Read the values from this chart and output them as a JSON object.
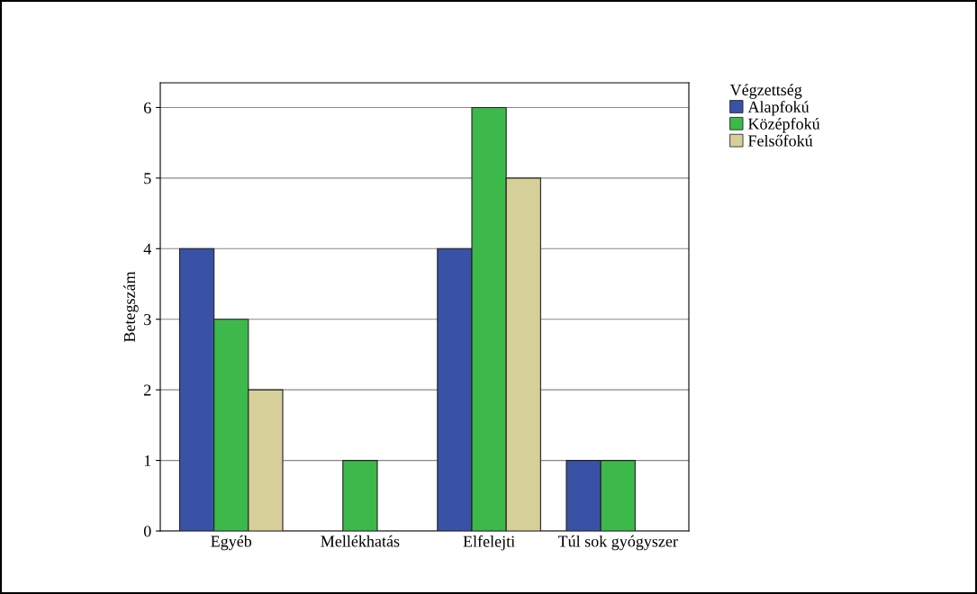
{
  "chart_data": {
    "type": "bar",
    "ylabel": "Betegszám",
    "legend_title": "Végzettség",
    "categories": [
      "Egyéb",
      "Mellékhatás",
      "Elfelejti",
      "Túl sok gyógyszer"
    ],
    "series": [
      {
        "name": "Alapfokú",
        "color": "#3a52a5",
        "values": [
          4,
          null,
          4,
          1
        ]
      },
      {
        "name": "Középfokú",
        "color": "#3cb94a",
        "values": [
          3,
          1,
          6,
          1
        ]
      },
      {
        "name": "Felsőfokú",
        "color": "#d6cf9a",
        "values": [
          2,
          null,
          5,
          null
        ]
      }
    ],
    "ylim": [
      0,
      6.35
    ],
    "yticks": [
      0,
      1,
      2,
      3,
      4,
      5,
      6
    ],
    "grid": "y",
    "legend": "top right"
  }
}
